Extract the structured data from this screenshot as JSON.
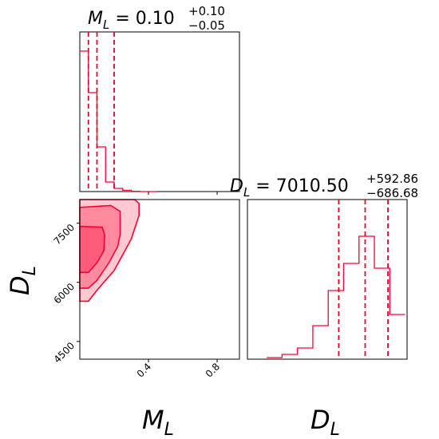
{
  "chart_data": [
    {
      "type": "histogram",
      "panel": "ML marginal",
      "title": {
        "param": "M",
        "sub": "L",
        "value": "0.10",
        "plus": "+0.10",
        "minus": "−0.05"
      },
      "bins": [
        0.0,
        0.05,
        0.1,
        0.15,
        0.2,
        0.25,
        0.3,
        0.35,
        0.4,
        0.45
      ],
      "counts": [
        0.88,
        0.62,
        0.28,
        0.06,
        0.02,
        0.008,
        0.002,
        0,
        0
      ],
      "quantiles": [
        0.05,
        0.1,
        0.2
      ],
      "xlim": [
        0.0,
        0.93
      ],
      "ylim": [
        0,
        1.0
      ]
    },
    {
      "type": "contour",
      "panel": "DL vs ML",
      "xlabel": {
        "param": "M",
        "sub": "L"
      },
      "ylabel": {
        "param": "D",
        "sub": "L"
      },
      "xlim": [
        0.0,
        0.93
      ],
      "ylim": [
        4050,
        8100
      ],
      "xticks": [
        0.4,
        0.8
      ],
      "xtick_labels": [
        "0.4",
        "0.8"
      ],
      "yticks": [
        4500,
        6000,
        7500
      ],
      "ytick_labels": [
        "4500",
        "6000",
        "7500"
      ],
      "levels": [
        {
          "name": "outer",
          "color": "#ffc9d2",
          "x": [
            0.0,
            0.0,
            0.13,
            0.24,
            0.32,
            0.345,
            0.345,
            0.3,
            0.2,
            0.1,
            0.05,
            0.0
          ],
          "y": [
            5520,
            8100,
            8100,
            8100,
            8100,
            8000,
            7700,
            7100,
            6300,
            5800,
            5520,
            5520
          ]
        },
        {
          "name": "middle",
          "color": "#ff8aa0",
          "x": [
            0.0,
            0.0,
            0.18,
            0.235,
            0.235,
            0.22,
            0.17,
            0.1,
            0.05,
            0.0
          ],
          "y": [
            5850,
            7900,
            7950,
            7800,
            7200,
            6900,
            6500,
            6050,
            5850,
            5850
          ]
        },
        {
          "name": "inner",
          "color": "#ff5c7c",
          "x": [
            0.0,
            0.0,
            0.13,
            0.145,
            0.14,
            0.1,
            0.05,
            0.0
          ],
          "y": [
            6250,
            7420,
            7400,
            7200,
            6800,
            6500,
            6250,
            6250
          ]
        }
      ]
    },
    {
      "type": "histogram",
      "panel": "DL marginal",
      "title": {
        "param": "D",
        "sub": "L",
        "value": "7010.50",
        "plus": "+592.86",
        "minus": "−686.68"
      },
      "xlabel": {
        "param": "D",
        "sub": "L"
      },
      "bins": [
        4450,
        4850,
        5250,
        5650,
        6050,
        6450,
        6850,
        7250,
        7650,
        8050
      ],
      "counts": [
        0.01,
        0.03,
        0.07,
        0.21,
        0.43,
        0.6,
        0.77,
        0.57,
        0.28
      ],
      "quantiles": [
        6323.82,
        7010.5,
        7603.36
      ],
      "xlim": [
        3950,
        8100
      ],
      "ylim": [
        0,
        1.0
      ]
    }
  ]
}
